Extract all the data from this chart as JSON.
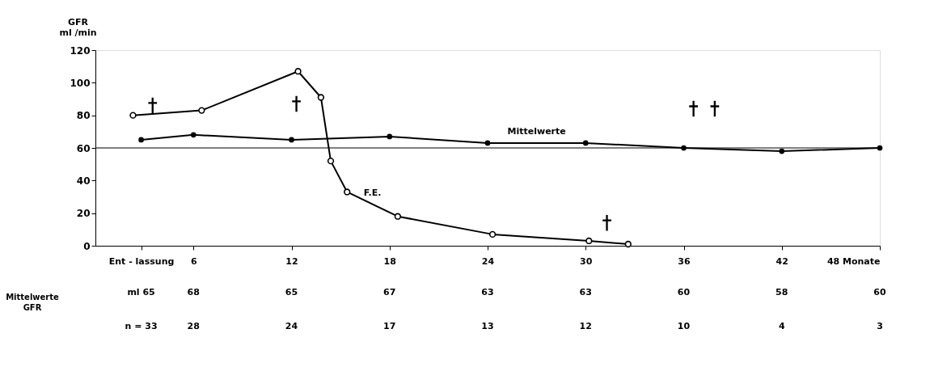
{
  "chart_data": {
    "type": "line",
    "ylabel": "GFR\nml /min",
    "xlim": [
      0,
      48
    ],
    "ylim": [
      0,
      120
    ],
    "xticks": [
      {
        "value": 2.8,
        "label": "Ent - lassung"
      },
      6,
      12,
      18,
      24,
      30,
      36,
      42,
      {
        "value": 48,
        "label": "48 Monate"
      }
    ],
    "yticks": [
      0,
      20,
      40,
      60,
      80,
      100,
      120
    ],
    "series": [
      {
        "name": "Mittelwerte",
        "color": "#000000",
        "marker": "circle",
        "line_style": "solid",
        "x": [
          2.8,
          6,
          12,
          18,
          24,
          30,
          36,
          42,
          48
        ],
        "values": [
          65,
          68,
          65,
          67,
          63,
          63,
          60,
          58,
          60
        ]
      },
      {
        "name": "F.E.",
        "color": "#000000",
        "marker": "circle",
        "line_style": "solid",
        "x": [
          2.3,
          6.5,
          12.4,
          13.8,
          14.4,
          15.4,
          18.5,
          24.3,
          30.2,
          32.6
        ],
        "values": [
          80,
          83,
          107,
          91,
          52,
          33,
          18,
          7,
          3,
          1
        ]
      },
      {
        "type": "scatter",
        "color": "#000000",
        "marker": "cross",
        "x": [
          3.5,
          12.3,
          36.6,
          37.9,
          31.3
        ],
        "values": [
          86,
          87,
          84,
          84,
          14
        ]
      }
    ],
    "ref_lines": [
      {
        "axis": "y",
        "value": 60,
        "color": "#000000"
      }
    ],
    "annotations": [
      "Mittelwerte\nGFR",
      "ml 65",
      "68",
      "65",
      "67",
      "63",
      "63",
      "60",
      "58",
      "60",
      "n = 33",
      "28",
      "24",
      "17",
      "13",
      "12",
      "10",
      "4",
      "3"
    ],
    "grid": false
  }
}
